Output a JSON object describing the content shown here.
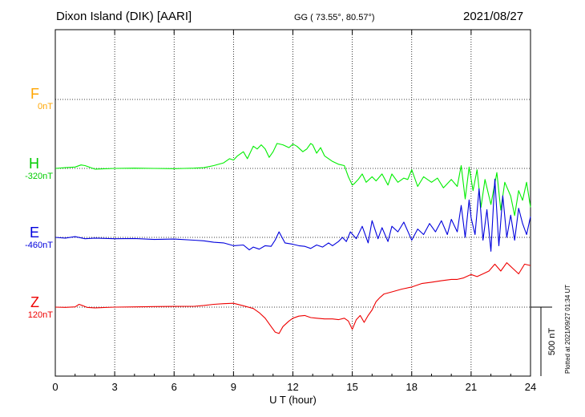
{
  "header": {
    "station": "Dixon Island (DIK)  [AARI]",
    "coords": "GG ( 73.55°,  80.57°)",
    "date": "2021/08/27"
  },
  "footer": {
    "plotted": "Plotted at 2021/09/27 01:34 UT"
  },
  "colors": {
    "F": "#ffa500",
    "H": "#00ee00",
    "E": "#0000dd",
    "Z": "#ee0000"
  },
  "chart_data": {
    "type": "line",
    "xlabel": "U T (hour)",
    "xlim": [
      0,
      24
    ],
    "xticks": [
      0,
      3,
      6,
      9,
      12,
      15,
      18,
      21,
      24
    ],
    "grid": true,
    "scale_bar": "500 nT",
    "components": [
      {
        "name": "F",
        "baseline": "0nT"
      },
      {
        "name": "H",
        "baseline": "-320nT"
      },
      {
        "name": "E",
        "baseline": "-460nT"
      },
      {
        "name": "Z",
        "baseline": "120nT"
      }
    ],
    "series": [
      {
        "name": "H",
        "unit": "nT",
        "x": [
          0,
          0.5,
          1,
          1.3,
          1.5,
          1.8,
          2,
          3,
          4,
          5,
          6,
          6.5,
          7,
          7.5,
          8,
          8.5,
          8.8,
          9,
          9.2,
          9.5,
          9.7,
          10,
          10.2,
          10.4,
          10.6,
          10.8,
          11,
          11.2,
          11.5,
          11.8,
          12,
          12.2,
          12.5,
          12.7,
          12.9,
          13,
          13.2,
          13.4,
          13.6,
          14,
          14.3,
          14.6,
          14.8,
          15,
          15.1,
          15.3,
          15.5,
          15.7,
          16,
          16.2,
          16.5,
          16.8,
          17,
          17.3,
          17.6,
          17.8,
          18,
          18.3,
          18.6,
          19,
          19.3,
          19.6,
          20,
          20.3,
          20.5,
          20.7,
          20.9,
          21.1,
          21.3,
          21.5,
          21.7,
          22,
          22.3,
          22.5,
          22.7,
          23,
          23.2,
          23.4,
          23.6,
          23.8,
          24
        ],
        "y": [
          -320,
          -315,
          -310,
          -295,
          -300,
          -315,
          -325,
          -320,
          -318,
          -320,
          -322,
          -320,
          -318,
          -315,
          -300,
          -280,
          -250,
          -260,
          -230,
          -200,
          -250,
          -160,
          -180,
          -150,
          -180,
          -240,
          -200,
          -140,
          -150,
          -170,
          -145,
          -160,
          -200,
          -180,
          -140,
          -150,
          -210,
          -170,
          -230,
          -270,
          -290,
          -300,
          -380,
          -440,
          -430,
          -400,
          -360,
          -420,
          -380,
          -410,
          -360,
          -440,
          -360,
          -420,
          -390,
          -400,
          -330,
          -450,
          -380,
          -420,
          -390,
          -460,
          -400,
          -450,
          -300,
          -540,
          -310,
          -480,
          -330,
          -600,
          -400,
          -580,
          -350,
          -620,
          -420,
          -520,
          -660,
          -480,
          -550,
          -420,
          -600
        ]
      },
      {
        "name": "E",
        "unit": "nT",
        "x": [
          0,
          0.5,
          1,
          1.5,
          2,
          3,
          4,
          5,
          6,
          7,
          7.5,
          8,
          8.5,
          9,
          9.5,
          9.8,
          10,
          10.3,
          10.6,
          10.9,
          11.1,
          11.3,
          11.6,
          12,
          12.3,
          12.6,
          12.9,
          13.2,
          13.5,
          13.8,
          14,
          14.3,
          14.5,
          14.7,
          14.9,
          15.2,
          15.5,
          15.8,
          16,
          16.3,
          16.5,
          16.8,
          17,
          17.3,
          17.6,
          18,
          18.3,
          18.6,
          18.9,
          19.2,
          19.5,
          19.8,
          20,
          20.3,
          20.5,
          20.7,
          20.9,
          21,
          21.2,
          21.4,
          21.6,
          21.8,
          22,
          22.2,
          22.4,
          22.6,
          22.8,
          23,
          23.2,
          23.4,
          23.6,
          23.8,
          24
        ],
        "y": [
          -460,
          -465,
          -455,
          -470,
          -465,
          -470,
          -468,
          -475,
          -472,
          -480,
          -485,
          -495,
          -500,
          -520,
          -515,
          -550,
          -530,
          -545,
          -520,
          -525,
          -480,
          -420,
          -500,
          -510,
          -520,
          -525,
          -540,
          -515,
          -530,
          -500,
          -520,
          -490,
          -460,
          -490,
          -420,
          -470,
          -380,
          -500,
          -340,
          -470,
          -390,
          -490,
          -380,
          -420,
          -350,
          -480,
          -400,
          -440,
          -360,
          -420,
          -340,
          -440,
          -330,
          -420,
          -230,
          -460,
          -190,
          -320,
          -440,
          -110,
          -480,
          -260,
          -560,
          -40,
          -520,
          -160,
          -460,
          -300,
          -480,
          -250,
          -360,
          -440,
          -310
        ]
      },
      {
        "name": "Z",
        "unit": "nT",
        "x": [
          0,
          0.5,
          1,
          1.2,
          1.4,
          1.6,
          2,
          3,
          4,
          5,
          6,
          7,
          7.5,
          8,
          8.5,
          9,
          9.5,
          10,
          10.3,
          10.6,
          10.9,
          11.1,
          11.3,
          11.5,
          11.8,
          12,
          12.3,
          12.6,
          12.9,
          13.2,
          13.6,
          14,
          14.3,
          14.6,
          14.8,
          15,
          15.2,
          15.4,
          15.6,
          15.8,
          16,
          16.2,
          16.4,
          16.6,
          17,
          17.5,
          18,
          18.5,
          19,
          19.5,
          20,
          20.3,
          20.6,
          21,
          21.3,
          21.6,
          21.9,
          22.2,
          22.5,
          22.8,
          23.1,
          23.4,
          23.7,
          24
        ],
        "y": [
          120,
          118,
          122,
          140,
          130,
          118,
          115,
          120,
          122,
          124,
          125,
          126,
          132,
          140,
          145,
          148,
          130,
          110,
          80,
          40,
          -20,
          -60,
          -70,
          -20,
          20,
          40,
          55,
          60,
          45,
          40,
          35,
          35,
          30,
          40,
          20,
          -40,
          30,
          60,
          10,
          60,
          100,
          160,
          190,
          215,
          230,
          250,
          265,
          290,
          300,
          310,
          320,
          320,
          330,
          355,
          340,
          360,
          380,
          430,
          380,
          440,
          400,
          360,
          430,
          420
        ]
      }
    ],
    "F_note": "F trace not shown (no data)"
  }
}
